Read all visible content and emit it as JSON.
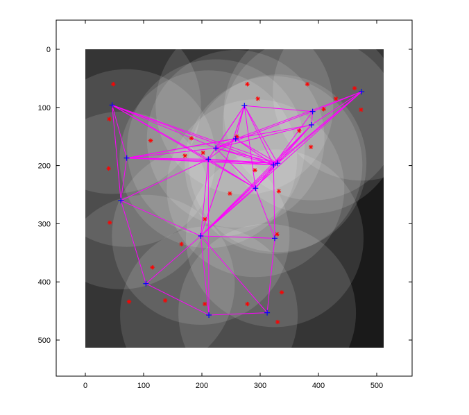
{
  "chart_data": {
    "type": "scatter",
    "title": "",
    "xlabel": "",
    "ylabel": "",
    "xlim": [
      -50,
      562
    ],
    "ylim": [
      0,
      562
    ],
    "y_inverted": true,
    "grid": false,
    "x_ticks": [
      "0",
      "100",
      "200",
      "300",
      "400",
      "500"
    ],
    "y_ticks": [
      "0",
      "100",
      "200",
      "300",
      "400",
      "500"
    ],
    "image": {
      "extent": [
        0,
        512,
        0,
        512
      ],
      "colormap": "gray"
    },
    "colors": {
      "background": "#ffffff",
      "axes_frame": "#000000",
      "red_points": "#ff0000",
      "blue_points": "#0000ff",
      "edges": "#ff00ff"
    },
    "series": [
      {
        "marker": "*",
        "values": [
          [
            48,
            60
          ],
          [
            278,
            60
          ],
          [
            381,
            60
          ],
          [
            462,
            67
          ],
          [
            296,
            85
          ],
          [
            430,
            85
          ],
          [
            473,
            104
          ],
          [
            409,
            103
          ],
          [
            41,
            120
          ],
          [
            112,
            157
          ],
          [
            367,
            140
          ],
          [
            387,
            168
          ],
          [
            182,
            153
          ],
          [
            260,
            150
          ],
          [
            202,
            178
          ],
          [
            171,
            183
          ],
          [
            40,
            205
          ],
          [
            291,
            208
          ],
          [
            332,
            244
          ],
          [
            248,
            248
          ],
          [
            205,
            292
          ],
          [
            42,
            298
          ],
          [
            329,
            318
          ],
          [
            165,
            335
          ],
          [
            115,
            375
          ],
          [
            137,
            432
          ],
          [
            75,
            434
          ],
          [
            205,
            438
          ],
          [
            278,
            438
          ],
          [
            337,
            418
          ],
          [
            330,
            469
          ]
        ]
      },
      {
        "marker": "+",
        "values": [
          [
            46,
            96
          ],
          [
            273,
            97
          ],
          [
            390,
            107
          ],
          [
            474,
            73
          ],
          [
            388,
            130
          ],
          [
            71,
            187
          ],
          [
            224,
            170
          ],
          [
            258,
            154
          ],
          [
            211,
            189
          ],
          [
            330,
            196
          ],
          [
            323,
            199
          ],
          [
            292,
            239
          ],
          [
            61,
            260
          ],
          [
            198,
            321
          ],
          [
            325,
            325
          ],
          [
            104,
            403
          ],
          [
            212,
            457
          ],
          [
            312,
            453
          ]
        ]
      }
    ],
    "edges": [
      [
        0,
        5
      ],
      [
        0,
        12
      ],
      [
        0,
        6
      ],
      [
        0,
        8
      ],
      [
        0,
        9
      ],
      [
        0,
        10
      ],
      [
        0,
        11
      ],
      [
        5,
        6
      ],
      [
        5,
        7
      ],
      [
        5,
        9
      ],
      [
        5,
        4
      ],
      [
        5,
        12
      ],
      [
        5,
        8
      ],
      [
        5,
        10
      ],
      [
        12,
        15
      ],
      [
        12,
        13
      ],
      [
        12,
        8
      ],
      [
        15,
        13
      ],
      [
        15,
        16
      ],
      [
        16,
        17
      ],
      [
        16,
        13
      ],
      [
        16,
        8
      ],
      [
        17,
        14
      ],
      [
        17,
        13
      ],
      [
        13,
        14
      ],
      [
        13,
        8
      ],
      [
        13,
        11
      ],
      [
        13,
        9
      ],
      [
        13,
        10
      ],
      [
        13,
        1
      ],
      [
        13,
        4
      ],
      [
        13,
        3
      ],
      [
        14,
        10
      ],
      [
        14,
        11
      ],
      [
        1,
        2
      ],
      [
        1,
        6
      ],
      [
        1,
        8
      ],
      [
        1,
        9
      ],
      [
        1,
        10
      ],
      [
        1,
        11
      ],
      [
        1,
        7
      ],
      [
        1,
        13
      ],
      [
        2,
        4
      ],
      [
        2,
        6
      ],
      [
        2,
        10
      ],
      [
        2,
        3
      ],
      [
        3,
        4
      ],
      [
        3,
        7
      ],
      [
        3,
        9
      ],
      [
        3,
        10
      ],
      [
        4,
        6
      ],
      [
        4,
        10
      ],
      [
        4,
        9
      ],
      [
        6,
        7
      ],
      [
        6,
        8
      ],
      [
        6,
        9
      ],
      [
        6,
        10
      ],
      [
        6,
        11
      ],
      [
        7,
        8
      ],
      [
        7,
        9
      ],
      [
        7,
        10
      ],
      [
        8,
        9
      ],
      [
        8,
        10
      ],
      [
        8,
        11
      ],
      [
        9,
        10
      ],
      [
        9,
        11
      ],
      [
        10,
        11
      ],
      [
        10,
        4
      ],
      [
        11,
        8
      ]
    ]
  }
}
